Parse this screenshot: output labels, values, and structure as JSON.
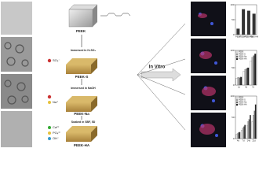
{
  "labels": {
    "peek": "PEEK",
    "step1": "Immersed in H₂SO₄",
    "peek_s": "PEEK-S",
    "step2": "Immersed in NaOH",
    "peek_na": "PEEK-Na",
    "step3": "Soaked in SBF, 5D",
    "peek_ha": "PEEK-HA",
    "in_vitro": "In Vitro"
  },
  "ions": {
    "so3": "SO₃⁻",
    "na": "Na⁺",
    "ca": "Ca²⁺",
    "po4": "PO₄³⁻",
    "oh": "OH⁻"
  },
  "charts": [
    {
      "type": "bar",
      "categories": [
        "PEEK",
        "PEEK-S",
        "PEEK-Na",
        "PEEK-HA"
      ],
      "values": [
        20,
        85,
        80,
        70
      ],
      "color": "#333",
      "ylim": [
        0,
        100
      ],
      "yticks": [
        0,
        50,
        100
      ]
    },
    {
      "type": "grouped",
      "categories": [
        "1d",
        "4d",
        "7d"
      ],
      "series": [
        {
          "name": "PEEK",
          "color": "#fff",
          "values": [
            20,
            40,
            70
          ]
        },
        {
          "name": "PEEK-S",
          "color": "#bbb",
          "values": [
            22,
            45,
            80
          ]
        },
        {
          "name": "PEEK-Na",
          "color": "#777",
          "values": [
            21,
            48,
            85
          ]
        },
        {
          "name": "PEEK-HA",
          "color": "#222",
          "values": [
            23,
            50,
            90
          ]
        }
      ],
      "ylim": [
        0,
        100
      ],
      "yticks": [
        0,
        50,
        100
      ]
    },
    {
      "type": "grouped",
      "categories": [
        "4d",
        "7d",
        "14d",
        "21d"
      ],
      "series": [
        {
          "name": "PEEK",
          "color": "#fff",
          "values": [
            10,
            20,
            30,
            40
          ]
        },
        {
          "name": "PEEK-S",
          "color": "#bbb",
          "values": [
            12,
            25,
            40,
            55
          ]
        },
        {
          "name": "PEEK-Na",
          "color": "#777",
          "values": [
            14,
            28,
            45,
            65
          ]
        },
        {
          "name": "PEEK-HA",
          "color": "#222",
          "values": [
            15,
            32,
            55,
            80
          ]
        }
      ],
      "ylim": [
        0,
        100
      ],
      "yticks": [
        0,
        50,
        100
      ]
    }
  ]
}
